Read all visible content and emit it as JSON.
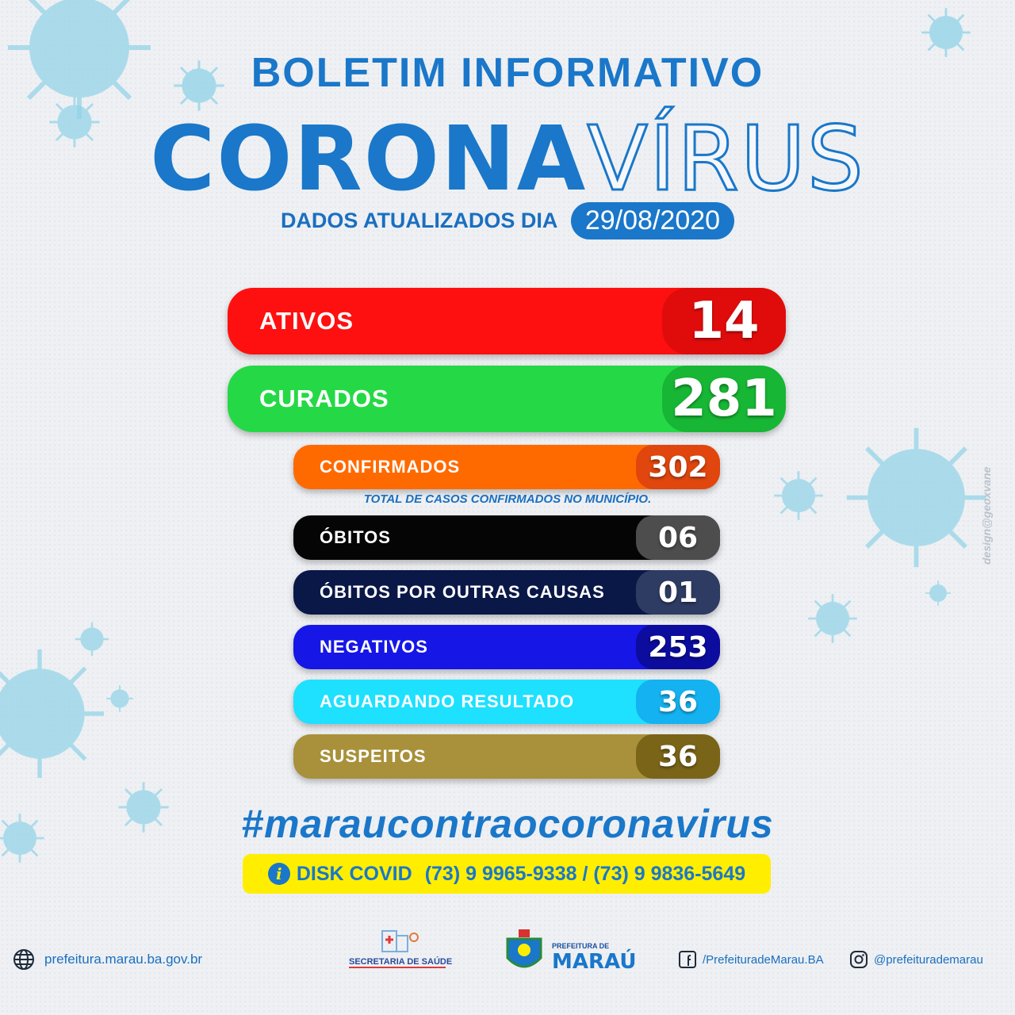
{
  "header": {
    "bulletin": "BOLETIM INFORMATIVO",
    "title_part1": "CORONA",
    "title_part2": "VÍRUS",
    "updated_label": "DADOS ATUALIZADOS DIA",
    "updated_date": "29/08/2020"
  },
  "stats": {
    "ativos": {
      "label": "ATIVOS",
      "value": "14",
      "color": "#ff1010",
      "value_color": "#e00c0c"
    },
    "curados": {
      "label": "CURADOS",
      "value": "281",
      "color": "#25d946",
      "value_color": "#17b634"
    },
    "confirmados": {
      "label": "CONFIRMADOS",
      "value": "302",
      "color": "#ff6a00",
      "value_color": "#e0460d"
    },
    "confirmados_note": "TOTAL DE CASOS CONFIRMADOS NO MUNICÍPIO.",
    "obitos": {
      "label": "ÓBITOS",
      "value": "06",
      "color": "#050505",
      "value_color": "#4d4d4d"
    },
    "obitos_outras": {
      "label": "ÓBITOS POR OUTRAS CAUSAS",
      "value": "01",
      "color": "#0a1848",
      "value_color": "#2e3b63"
    },
    "negativos": {
      "label": "NEGATIVOS",
      "value": "253",
      "color": "#1616e6",
      "value_color": "#0c0c9e"
    },
    "aguardando": {
      "label": "AGUARDANDO RESULTADO",
      "value": "36",
      "color": "#1ee0ff",
      "value_color": "#14b2f0"
    },
    "suspeitos": {
      "label": "SUSPEITOS",
      "value": "36",
      "color": "#a8913a",
      "value_color": "#7a6418"
    }
  },
  "hashtag": "#maraucontraocoronavirus",
  "disk_covid": {
    "label": "DISK COVID",
    "phones": "(73) 9 9965-9338 / (73) 9 9836-5649"
  },
  "footer": {
    "website": "prefeitura.marau.ba.gov.br",
    "secretaria_logo_text": "SECRETARIA DE SAÚDE",
    "prefeitura_logo_small": "PREFEITURA DE",
    "prefeitura_logo_big": "MARAÚ",
    "facebook": "/PrefeituradeMarau.BA",
    "instagram": "@prefeiturademarau"
  },
  "credit": "design@geoxvane",
  "icons": [
    "virus-icon",
    "globe-icon",
    "facebook-icon",
    "instagram-icon",
    "info-icon"
  ]
}
